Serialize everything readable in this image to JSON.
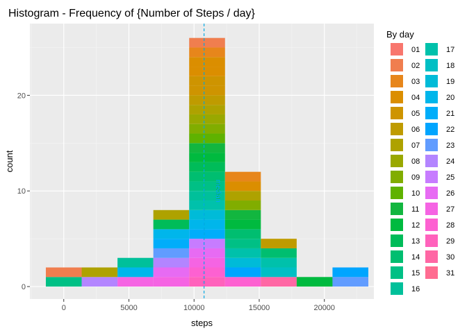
{
  "chart_data": {
    "type": "bar",
    "title": "Histogram - Frequency of {Number of Steps / day}",
    "xlabel": "steps",
    "ylabel": "count",
    "xlim": [
      -2600,
      23800
    ],
    "ylim": [
      -1.3,
      27.5
    ],
    "x_ticks": [
      0,
      5000,
      10000,
      15000,
      20000
    ],
    "x_tick_labels": [
      "0",
      "5000",
      "10000",
      "15000",
      "20000"
    ],
    "y_ticks": [
      0,
      10,
      20
    ],
    "y_tick_labels": [
      "0",
      "10",
      "20"
    ],
    "grid": true,
    "legend": {
      "title": "By day",
      "position": "right",
      "columns": 2,
      "items": [
        "01",
        "02",
        "03",
        "04",
        "05",
        "06",
        "07",
        "08",
        "09",
        "10",
        "11",
        "12",
        "13",
        "14",
        "15",
        "16",
        "17",
        "18",
        "19",
        "20",
        "21",
        "22",
        "23",
        "24",
        "25",
        "26",
        "27",
        "28",
        "29",
        "30",
        "31"
      ],
      "colors": [
        "#F8766D",
        "#F07E4F",
        "#E7861B",
        "#DB8E00",
        "#CE9400",
        "#BF9B00",
        "#AEA200",
        "#99A800",
        "#81AD00",
        "#5FB200",
        "#12B63F",
        "#00BA3F",
        "#00BC59",
        "#00BE70",
        "#00C085",
        "#00C09A",
        "#00C1AB",
        "#00BFC4",
        "#00BBD8",
        "#00B6EB",
        "#00ADFA",
        "#00A5FF",
        "#619CFF",
        "#B385FF",
        "#C77CFF",
        "#E76BF3",
        "#F564E3",
        "#FD61D1",
        "#FF62BC",
        "#FF67A4",
        "#FF6C91"
      ]
    },
    "bin_width": 2750,
    "bins": [
      {
        "x_start": -1375,
        "x_end": 1375,
        "count": 2,
        "days": [
          "15",
          "02"
        ]
      },
      {
        "x_start": 1375,
        "x_end": 4125,
        "count": 2,
        "days": [
          "24",
          "07"
        ]
      },
      {
        "x_start": 4125,
        "x_end": 6875,
        "count": 3,
        "days": [
          "27",
          "20",
          "16"
        ]
      },
      {
        "x_start": 6875,
        "x_end": 9625,
        "count": 8,
        "days": [
          "27",
          "26",
          "24",
          "23",
          "21",
          "20",
          "13",
          "07"
        ]
      },
      {
        "x_start": 9625,
        "x_end": 12375,
        "count": 26,
        "days": [
          "29",
          "28",
          "27",
          "26",
          "25",
          "21",
          "20",
          "19",
          "17",
          "16",
          "15",
          "14",
          "13",
          "12",
          "11",
          "10",
          "09",
          "08",
          "07",
          "06",
          "05",
          "05",
          "04",
          "04",
          "03",
          "02"
        ]
      },
      {
        "x_start": 12375,
        "x_end": 15125,
        "count": 12,
        "days": [
          "28",
          "22",
          "19",
          "17",
          "15",
          "14",
          "12",
          "11",
          "09",
          "07",
          "04",
          "03"
        ]
      },
      {
        "x_start": 15125,
        "x_end": 17875,
        "count": 5,
        "days": [
          "30",
          "18",
          "17",
          "14",
          "06"
        ]
      },
      {
        "x_start": 17875,
        "x_end": 20625,
        "count": 1,
        "days": [
          "12"
        ]
      },
      {
        "x_start": 20625,
        "x_end": 23375,
        "count": 2,
        "days": [
          "23",
          "22"
        ]
      }
    ],
    "vlines": [
      {
        "x": 10766,
        "color": "#00BA38",
        "style": "dashed"
      },
      {
        "x": 10765,
        "color": "#00A5FF",
        "style": "dashed"
      }
    ],
    "annotations": [
      {
        "text": "mean",
        "x": 11700,
        "y": 10,
        "color": "#00BA38",
        "rotate": 90
      },
      {
        "text": "median",
        "x": 11700,
        "y": 10,
        "color": "#00A5FF",
        "rotate": 90
      }
    ]
  }
}
